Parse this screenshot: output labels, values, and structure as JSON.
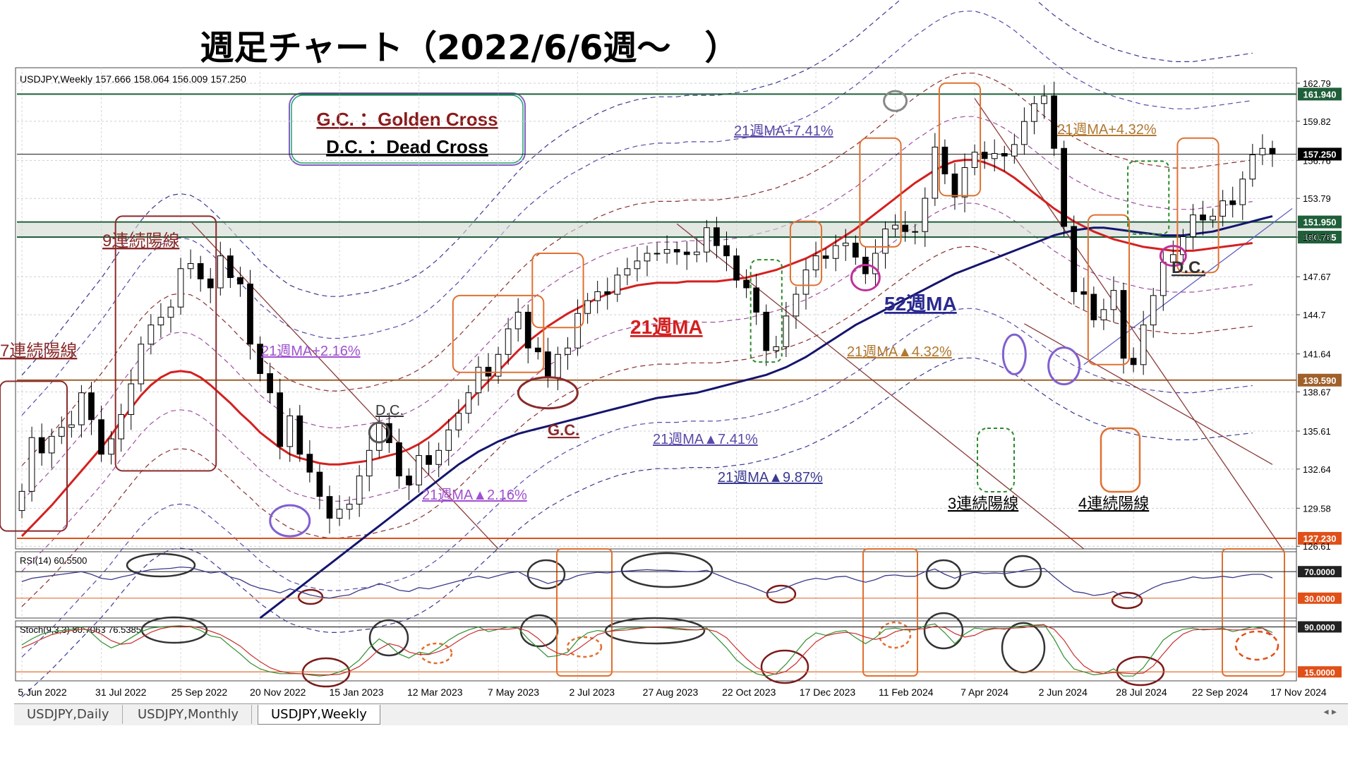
{
  "page": {
    "title": "週足チャート（2022/6/6週～　）"
  },
  "header": {
    "symbol_line": "USDJPY,Weekly  157.666 158.064 156.009 157.250"
  },
  "legend_box": {
    "gc": "G.C. ：Golden Cross",
    "dc": "D.C. ：Dead Cross"
  },
  "tabs": [
    {
      "label": "USDJPY,Daily",
      "active": false
    },
    {
      "label": "USDJPY,Monthly",
      "active": false
    },
    {
      "label": "USDJPY,Weekly",
      "active": true
    }
  ],
  "colors": {
    "ma21": "#d42020",
    "ma52": "#15156e",
    "bull": "#ffffff",
    "bear": "#000000",
    "hline_red": "#e05018",
    "hline_brown": "#a0602a",
    "hline_green": "#1f5f3a",
    "rsi": "#3a3a8a",
    "stoch_k": "#2f8f2f",
    "stoch_d": "#c83030"
  },
  "chart_data": {
    "type": "candlestick",
    "symbol": "USDJPY",
    "timeframe": "Weekly",
    "ohlc_last": {
      "open": 157.666,
      "high": 158.064,
      "low": 156.009,
      "close": 157.25
    },
    "price_axis": {
      "ticks": [
        162.79,
        159.82,
        156.76,
        153.79,
        150.76,
        147.67,
        144.7,
        141.64,
        138.67,
        135.61,
        132.64,
        129.58,
        126.61
      ],
      "ylim": [
        126.4,
        164.0
      ]
    },
    "x_tick_labels": [
      "5 Jun 2022",
      "31 Jul 2022",
      "25 Sep 2022",
      "20 Nov 2022",
      "15 Jan 2023",
      "12 Mar 2023",
      "7 May 2023",
      "2 Jul 2023",
      "27 Aug 2023",
      "22 Oct 2023",
      "17 Dec 2023",
      "11 Feb 2024",
      "7 Apr 2024",
      "2 Jun 2024",
      "28 Jul 2024",
      "22 Sep 2024",
      "17 Nov 2024"
    ],
    "horizontal_levels": [
      {
        "value": 161.94,
        "label": "161.940",
        "color": "#1f5f3a"
      },
      {
        "value": 157.25,
        "label": "157.250",
        "color": "#000000"
      },
      {
        "value": 151.95,
        "label": "151.950",
        "color": "#1f5f3a"
      },
      {
        "value": 150.765,
        "label": "150.765",
        "color": "#1f5f3a"
      },
      {
        "value": 139.59,
        "label": "139.590",
        "color": "#a0602a"
      },
      {
        "value": 127.23,
        "label": "127.230",
        "color": "#e05018"
      }
    ],
    "weekly_close": [
      130.9,
      135.1,
      133.9,
      135.2,
      135.9,
      136.1,
      138.6,
      136.5,
      133.8,
      135.0,
      136.9,
      139.3,
      142.4,
      143.9,
      144.5,
      145.3,
      148.3,
      148.7,
      147.5,
      146.8,
      149.3,
      147.6,
      147.1,
      142.4,
      140.1,
      138.6,
      134.4,
      136.8,
      133.8,
      132.4,
      130.5,
      128.8,
      129.5,
      129.9,
      132.1,
      134.1,
      136.2,
      134.7,
      132.1,
      131.4,
      133.7,
      133.0,
      134.1,
      135.7,
      137.0,
      138.6,
      140.6,
      139.9,
      141.6,
      143.6,
      144.9,
      142.1,
      141.8,
      139.8,
      141.6,
      142.1,
      144.8,
      145.8,
      146.5,
      146.3,
      147.8,
      148.3,
      148.9,
      149.5,
      149.5,
      149.8,
      149.6,
      149.4,
      149.6,
      151.5,
      150.1,
      149.3,
      147.4,
      146.8,
      144.9,
      141.9,
      142.2,
      144.6,
      146.3,
      148.2,
      149.3,
      149.1,
      150.1,
      150.3,
      149.2,
      147.9,
      149.5,
      151.4,
      151.7,
      151.2,
      151.2,
      153.8,
      157.8,
      155.7,
      153.9,
      156.2,
      157.4,
      156.9,
      157.3,
      157.1,
      158.0,
      159.8,
      161.2,
      161.8,
      157.7,
      151.6,
      146.5,
      146.3,
      144.3,
      145.1,
      146.6,
      141.3,
      140.8,
      143.9,
      146.2,
      148.8,
      149.4,
      150.8,
      152.5,
      152.1,
      152.4,
      153.6,
      153.3,
      155.3,
      157.2,
      157.7,
      157.25
    ],
    "series": [
      {
        "name": "21週MA",
        "values": [
          127.4,
          128.2,
          129.0,
          129.8,
          130.7,
          131.6,
          132.5,
          133.4,
          134.3,
          135.3,
          136.4,
          137.4,
          138.4,
          139.2,
          139.8,
          140.2,
          140.3,
          140.2,
          139.8,
          139.2,
          138.5,
          137.8,
          137.0,
          136.3,
          135.5,
          134.9,
          134.3,
          133.8,
          133.5,
          133.3,
          133.1,
          133.0,
          133.0,
          133.1,
          133.2,
          133.3,
          133.5,
          133.7,
          133.9,
          134.2,
          134.6,
          135.1,
          135.7,
          136.4,
          137.1,
          137.9,
          138.7,
          139.5,
          140.3,
          141.1,
          141.9,
          142.6,
          143.2,
          143.8,
          144.3,
          144.8,
          145.2,
          145.6,
          146.0,
          146.3,
          146.6,
          146.8,
          147.0,
          147.1,
          147.2,
          147.2,
          147.2,
          147.3,
          147.3,
          147.3,
          147.3,
          147.4,
          147.5,
          147.6,
          147.8,
          148.0,
          148.2,
          148.5,
          148.8,
          149.1,
          149.5,
          149.9,
          150.4,
          150.9,
          151.4,
          152.0,
          152.6,
          153.2,
          153.8,
          154.4,
          155.0,
          155.5,
          156.0,
          156.4,
          156.7,
          156.8,
          156.8,
          156.6,
          156.3,
          155.9,
          155.4,
          154.8,
          154.2,
          153.6,
          153.0,
          152.5,
          152.0,
          151.6,
          151.2,
          150.9,
          150.6,
          150.4,
          150.2,
          150.0,
          149.9,
          149.8,
          149.7,
          149.7,
          149.7,
          149.8,
          149.9,
          150.0,
          150.1,
          150.2,
          150.3
        ]
      },
      {
        "name": "52週MA",
        "values": [
          121.0,
          121.6,
          122.2,
          122.8,
          123.4,
          124.0,
          124.6,
          125.2,
          125.8,
          126.4,
          127.0,
          127.6,
          128.2,
          128.8,
          129.4,
          130.0,
          130.6,
          131.2,
          131.8,
          132.4,
          133.0,
          133.5,
          134.0,
          134.4,
          134.8,
          135.1,
          135.4,
          135.6,
          135.8,
          136.0,
          136.2,
          136.4,
          136.6,
          136.8,
          137.0,
          137.2,
          137.4,
          137.6,
          137.8,
          138.0,
          138.2,
          138.3,
          138.4,
          138.5,
          138.6,
          138.8,
          139.0,
          139.2,
          139.4,
          139.6,
          139.8,
          140.0,
          140.3,
          140.6,
          141.0,
          141.4,
          141.9,
          142.4,
          142.9,
          143.4,
          143.9,
          144.3,
          144.7,
          145.1,
          145.5,
          145.9,
          146.3,
          146.7,
          147.1,
          147.5,
          147.9,
          148.2,
          148.5,
          148.8,
          149.1,
          149.4,
          149.7,
          150.0,
          150.3,
          150.6,
          150.9,
          151.1,
          151.3,
          151.4,
          151.5,
          151.5,
          151.4,
          151.3,
          151.2,
          151.1,
          151.0,
          150.9,
          150.9,
          150.9,
          151.0,
          151.1,
          151.2,
          151.4,
          151.6,
          151.8,
          152.0,
          152.2,
          152.4
        ]
      }
    ],
    "band_labels": [
      "21週MA+7.41%",
      "21週MA+4.32%",
      "21週MA+2.16%",
      "21週MA▲4.32%",
      "21週MA▲7.41%",
      "21週MA▲2.16%",
      "21週MA▲9.87%"
    ],
    "annotations": [
      "7連続陽線",
      "9連続陽線",
      "21週MA",
      "52週MA",
      "G.C.",
      "D.C.",
      "D.C.",
      "3連続陽線",
      "4連続陽線"
    ],
    "rsi": {
      "label": "RSI(14) 60.5500",
      "levels": [
        "70.0000",
        "30.0000"
      ],
      "values": [
        55,
        60,
        62,
        64,
        66,
        68,
        70,
        66,
        60,
        58,
        62,
        65,
        70,
        73,
        74,
        75,
        77,
        76,
        72,
        68,
        70,
        62,
        58,
        50,
        45,
        42,
        38,
        44,
        40,
        35,
        32,
        30,
        33,
        35,
        42,
        46,
        52,
        48,
        42,
        40,
        46,
        44,
        48,
        52,
        56,
        60,
        63,
        60,
        64,
        68,
        70,
        62,
        58,
        52,
        56,
        58,
        64,
        67,
        69,
        68,
        70,
        71,
        72,
        73,
        72,
        72,
        71,
        70,
        70,
        72,
        66,
        60,
        54,
        50,
        44,
        38,
        40,
        46,
        52,
        57,
        60,
        58,
        62,
        63,
        58,
        54,
        58,
        64,
        65,
        63,
        63,
        70,
        74,
        66,
        60,
        66,
        69,
        67,
        68,
        67,
        69,
        72,
        74,
        75,
        62,
        50,
        40,
        38,
        34,
        36,
        40,
        32,
        30,
        38,
        46,
        52,
        55,
        58,
        62,
        60,
        61,
        63,
        61,
        64,
        66,
        66,
        60.5
      ]
    },
    "stochastic": {
      "label": "Stoch(9,3,3) 80.7063 76.5385",
      "levels": [
        "90.0000",
        "15.0000"
      ],
      "k": [
        60,
        70,
        78,
        82,
        84,
        86,
        90,
        80,
        65,
        55,
        62,
        72,
        82,
        88,
        90,
        91,
        92,
        90,
        84,
        75,
        72,
        58,
        45,
        30,
        20,
        15,
        12,
        12,
        12,
        10,
        8,
        10,
        15,
        22,
        35,
        55,
        70,
        60,
        45,
        38,
        48,
        45,
        55,
        68,
        78,
        85,
        90,
        82,
        86,
        90,
        88,
        70,
        55,
        40,
        42,
        48,
        68,
        80,
        84,
        82,
        86,
        88,
        88,
        90,
        89,
        88,
        86,
        85,
        85,
        88,
        72,
        55,
        35,
        22,
        12,
        8,
        12,
        28,
        48,
        68,
        80,
        76,
        82,
        84,
        72,
        62,
        72,
        86,
        88,
        85,
        85,
        92,
        95,
        80,
        62,
        78,
        88,
        86,
        88,
        86,
        90,
        92,
        93,
        94,
        70,
        40,
        20,
        15,
        10,
        12,
        20,
        8,
        8,
        22,
        45,
        68,
        80,
        86,
        88,
        85,
        86,
        88,
        82,
        86,
        90,
        88,
        80.7
      ],
      "d": [
        55,
        62,
        70,
        77,
        81,
        84,
        86,
        85,
        78,
        67,
        61,
        63,
        72,
        81,
        87,
        90,
        91,
        91,
        88,
        83,
        77,
        68,
        58,
        44,
        32,
        22,
        16,
        13,
        12,
        11,
        10,
        10,
        11,
        16,
        24,
        37,
        53,
        62,
        58,
        48,
        44,
        44,
        49,
        56,
        67,
        77,
        84,
        86,
        86,
        86,
        88,
        83,
        71,
        55,
        46,
        43,
        53,
        65,
        77,
        82,
        84,
        85,
        87,
        89,
        89,
        89,
        88,
        86,
        85,
        86,
        82,
        72,
        54,
        37,
        23,
        14,
        11,
        16,
        29,
        48,
        65,
        75,
        79,
        81,
        79,
        73,
        69,
        73,
        82,
        86,
        86,
        87,
        91,
        89,
        79,
        73,
        76,
        84,
        87,
        87,
        88,
        89,
        92,
        93,
        86,
        68,
        43,
        25,
        15,
        12,
        14,
        13,
        12,
        13,
        25,
        45,
        64,
        78,
        85,
        86,
        86,
        86,
        85,
        85,
        86,
        88,
        76.5
      ]
    }
  }
}
